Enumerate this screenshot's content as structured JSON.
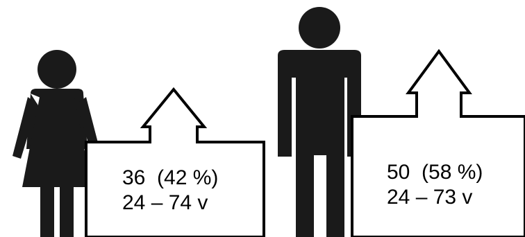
{
  "female": {
    "icon": "woman-icon",
    "count_line": "36  (42 %)",
    "age_line": "24 – 74 v"
  },
  "male": {
    "icon": "man-icon",
    "count_line": "50  (58 %)",
    "age_line": "24 – 73 v"
  },
  "colors": {
    "figure": "#1a1a1a",
    "outline": "#000000",
    "background": "#ffffff"
  }
}
